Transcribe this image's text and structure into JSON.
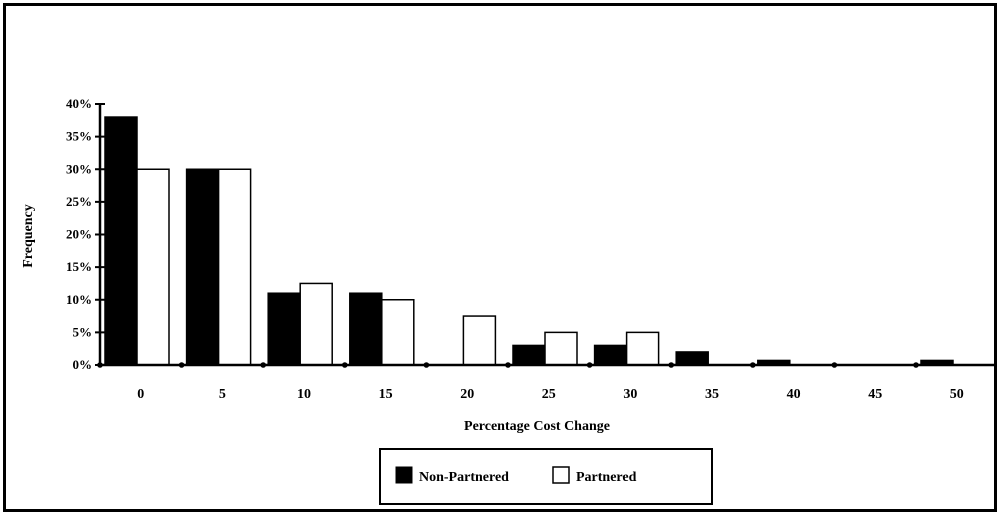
{
  "chart_data": {
    "type": "bar",
    "title": "",
    "xlabel": "Percentage Cost Change",
    "ylabel": "Frequency",
    "ylim": [
      0,
      40
    ],
    "yticks": [
      "0%",
      "5%",
      "10%",
      "15%",
      "20%",
      "25%",
      "30%",
      "35%",
      "40%"
    ],
    "categories": [
      "0",
      "5",
      "10",
      "15",
      "20",
      "25",
      "30",
      "35",
      "40",
      "45",
      "50"
    ],
    "series": [
      {
        "name": "Non-Partnered",
        "color": "#000000",
        "values": [
          38,
          30,
          11,
          11,
          0,
          3,
          3,
          2,
          0.7,
          0,
          0.7
        ]
      },
      {
        "name": "Partnered",
        "color": "#ffffff",
        "values": [
          30,
          30,
          12.5,
          10,
          7.5,
          5,
          5,
          0,
          0,
          0,
          0
        ]
      }
    ],
    "legend_position": "bottom-center",
    "grid": false
  }
}
